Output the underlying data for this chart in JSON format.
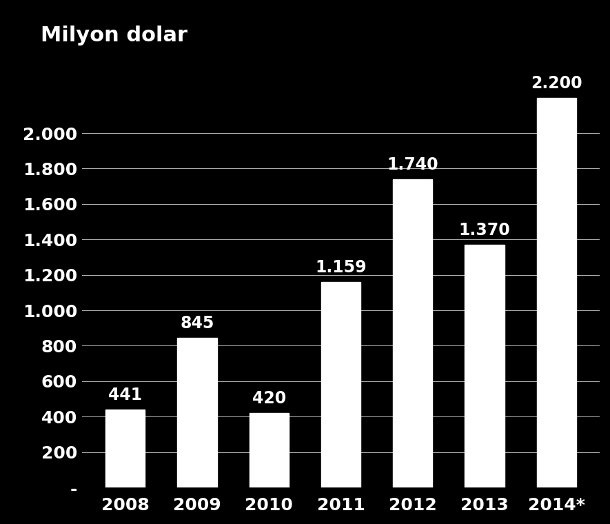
{
  "categories": [
    "2008",
    "2009",
    "2010",
    "2011",
    "2012",
    "2013",
    "2014*"
  ],
  "values": [
    441,
    845,
    420,
    1159,
    1740,
    1370,
    2200
  ],
  "bar_color": "#ffffff",
  "background_color": "#000000",
  "text_color": "#ffffff",
  "ylabel": "Milyon dolar",
  "yticks": [
    0,
    200,
    400,
    600,
    800,
    1000,
    1200,
    1400,
    1600,
    1800,
    2000
  ],
  "ytick_labels": [
    "-",
    "200",
    "400",
    "600",
    "800",
    "1.000",
    "1.200",
    "1.400",
    "1.600",
    "1.800",
    "2.000"
  ],
  "bar_labels": [
    "441",
    "845",
    "420",
    "1.159",
    "1.740",
    "1.370",
    "2.200"
  ],
  "title_fontsize": 22,
  "tick_fontsize": 18,
  "bar_label_fontsize": 17
}
